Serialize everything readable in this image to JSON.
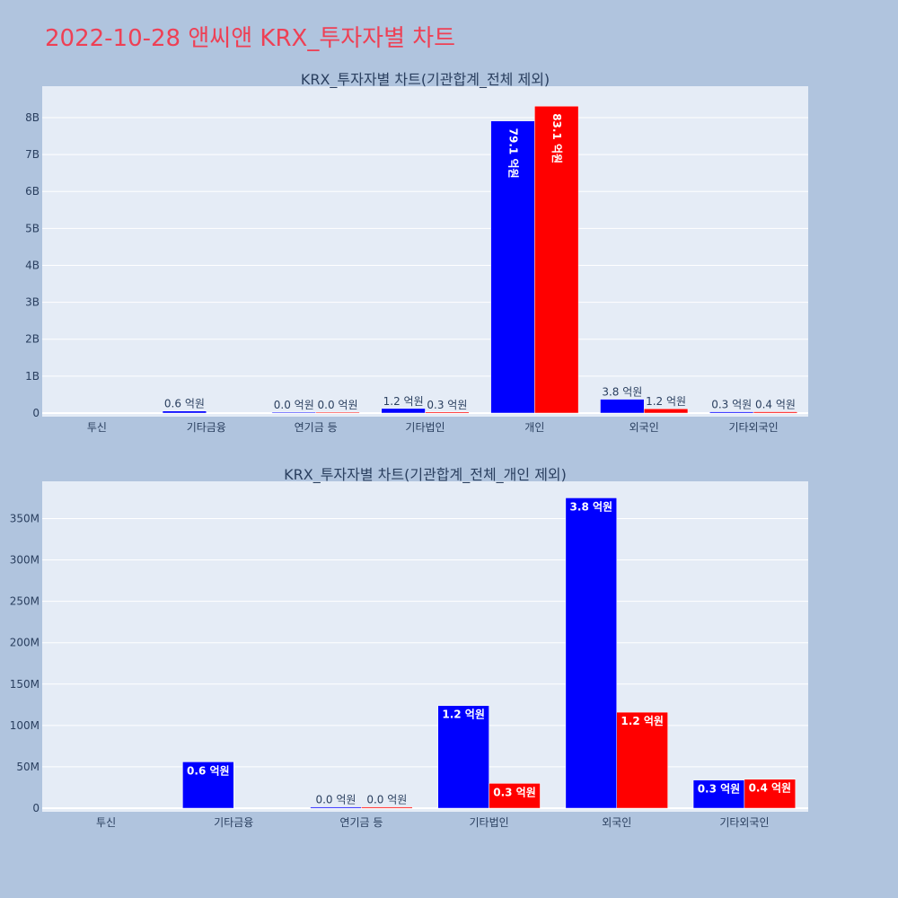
{
  "page": {
    "title": "2022-10-28 앤씨앤 KRX_투자자별 차트"
  },
  "colors": {
    "background": "#b0c4de",
    "plot_bg": "#e5ecf6",
    "buy": "#0000ff",
    "sell": "#ff0000",
    "title": "#ee4055"
  },
  "chart_data": [
    {
      "type": "bar",
      "title": "KRX_투자자별 차트(기관합계_전체 제외)",
      "categories": [
        "투신",
        "기타금융",
        "연기금 등",
        "기타법인",
        "개인",
        "외국인",
        "기타외국인"
      ],
      "ylim": [
        0,
        8850000000
      ],
      "yticks": [
        0,
        1000000000,
        2000000000,
        3000000000,
        4000000000,
        5000000000,
        6000000000,
        7000000000,
        8000000000
      ],
      "ytick_labels": [
        "0",
        "1B",
        "2B",
        "3B",
        "4B",
        "5B",
        "6B",
        "7B",
        "8B"
      ],
      "grid": true,
      "series": [
        {
          "color": "#0000ff",
          "values": [
            0,
            56000000,
            2000000,
            124000000,
            7910000000,
            375000000,
            34000000
          ],
          "labels": [
            "",
            "0.6 억원",
            "0.0 억원",
            "1.2 억원",
            "79.1 억원",
            "3.8 억원",
            "0.3 억원"
          ]
        },
        {
          "color": "#ff0000",
          "values": [
            0,
            0,
            2000000,
            30000000,
            8310000000,
            116000000,
            35000000
          ],
          "labels": [
            "",
            "",
            "0.0 억원",
            "0.3 억원",
            "83.1 억원",
            "1.2 억원",
            "0.4 억원"
          ]
        }
      ]
    },
    {
      "type": "bar",
      "title": "KRX_투자자별 차트(기관합계_전체_개인 제외)",
      "categories": [
        "투신",
        "기타금융",
        "연기금 등",
        "기타법인",
        "외국인",
        "기타외국인"
      ],
      "ylim": [
        0,
        395000000
      ],
      "yticks": [
        0,
        50000000,
        100000000,
        150000000,
        200000000,
        250000000,
        300000000,
        350000000
      ],
      "ytick_labels": [
        "0",
        "50M",
        "100M",
        "150M",
        "200M",
        "250M",
        "300M",
        "350M"
      ],
      "grid": true,
      "series": [
        {
          "color": "#0000ff",
          "values": [
            0,
            56000000,
            1500000,
            124000000,
            375000000,
            34000000
          ],
          "labels": [
            "",
            "0.6 억원",
            "0.0 억원",
            "1.2 억원",
            "3.8 억원",
            "0.3 억원"
          ]
        },
        {
          "color": "#ff0000",
          "values": [
            0,
            0,
            1500000,
            30000000,
            116000000,
            35000000
          ],
          "labels": [
            "",
            "",
            "0.0 억원",
            "0.3 억원",
            "1.2 억원",
            "0.4 억원"
          ]
        }
      ]
    }
  ]
}
